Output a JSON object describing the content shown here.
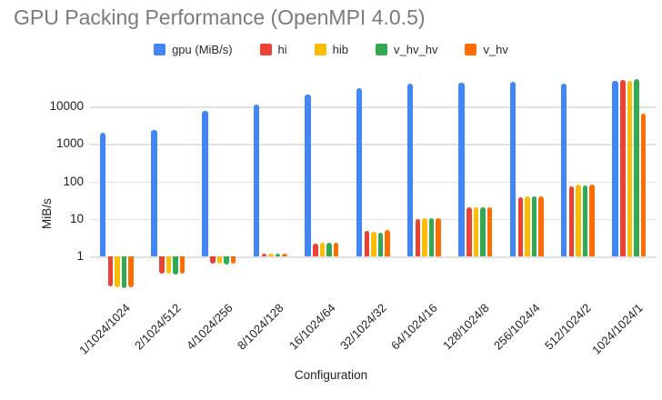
{
  "title": "GPU Packing Performance (OpenMPI 4.0.5)",
  "chart_data": {
    "type": "bar",
    "title": "GPU Packing Performance (OpenMPI 4.0.5)",
    "xlabel": "Configuration",
    "ylabel": "MiB/s",
    "y_scale": "log",
    "y_ticks": [
      1,
      10,
      100,
      1000,
      10000
    ],
    "ylim": [
      0.1,
      60000
    ],
    "grid": true,
    "legend_position": "top",
    "categories": [
      "1/1024/1024",
      "2/1024/512",
      "4/1024/256",
      "8/1024/128",
      "16/1024/64",
      "32/1024/32",
      "64/1024/16",
      "128/1024/8",
      "256/1024/4",
      "512/1024/2",
      "1024/1024/1"
    ],
    "series": [
      {
        "name": "gpu (MiB/s)",
        "color": "#4285F4",
        "values": [
          2000,
          2300,
          7800,
          11500,
          21000,
          31000,
          40000,
          43000,
          47000,
          41000,
          48000
        ]
      },
      {
        "name": "hi",
        "color": "#EA4335",
        "values": [
          0.16,
          0.34,
          0.65,
          1.2,
          2.2,
          4.9,
          10,
          20,
          38,
          76,
          52000
        ]
      },
      {
        "name": "hib",
        "color": "#FBBC04",
        "values": [
          0.15,
          0.34,
          0.63,
          1.2,
          2.3,
          4.5,
          10.2,
          20.5,
          40,
          82,
          48000
        ]
      },
      {
        "name": "v_hv_hv",
        "color": "#34A853",
        "values": [
          0.14,
          0.33,
          0.62,
          1.15,
          2.3,
          4.3,
          10.5,
          20.5,
          39,
          79,
          54000
        ]
      },
      {
        "name": "v_hv",
        "color": "#FF6D01",
        "values": [
          0.15,
          0.34,
          0.63,
          1.2,
          2.35,
          5.1,
          10.2,
          20,
          40,
          82,
          6300
        ]
      }
    ]
  }
}
